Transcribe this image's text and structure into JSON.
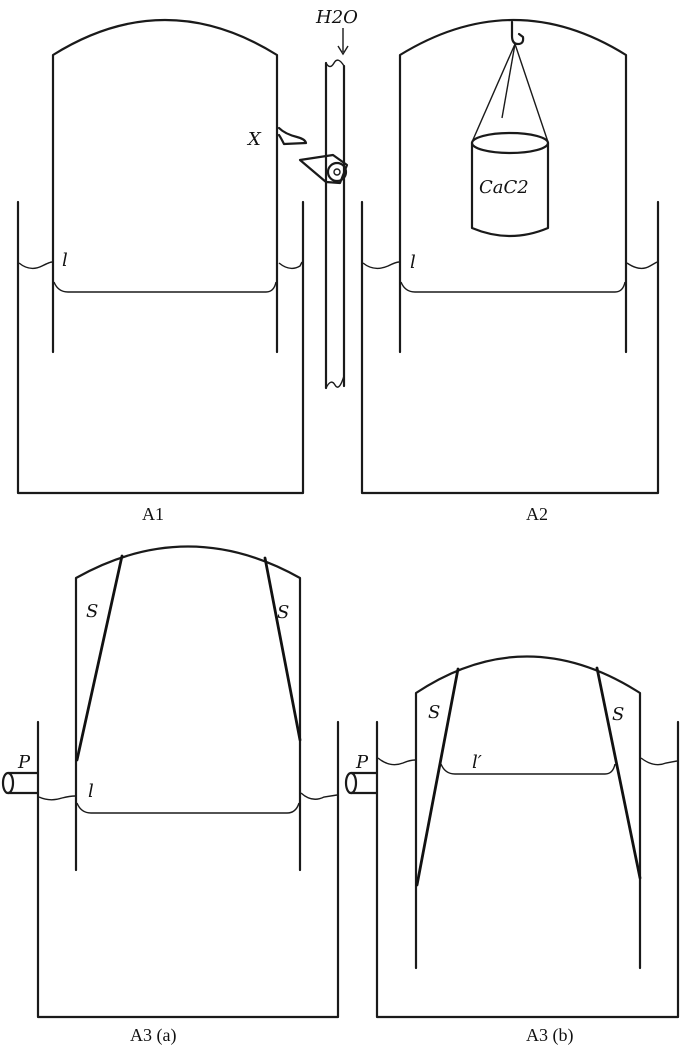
{
  "panels": {
    "a1": {
      "caption": "A1",
      "level_label": "l",
      "valve_label": "X",
      "water_label": "H2O"
    },
    "a2": {
      "caption": "A2",
      "level_label": "l",
      "carbide_label": "CaC2"
    },
    "a3a": {
      "caption": "A3 (a)",
      "level_label": "l",
      "pipe_label": "P",
      "side_label_left": "S",
      "side_label_right": "S"
    },
    "a3b": {
      "caption": "A3 (b)",
      "level_label": "l′",
      "pipe_label": "P",
      "side_label_left": "S",
      "side_label_right": "S"
    }
  }
}
